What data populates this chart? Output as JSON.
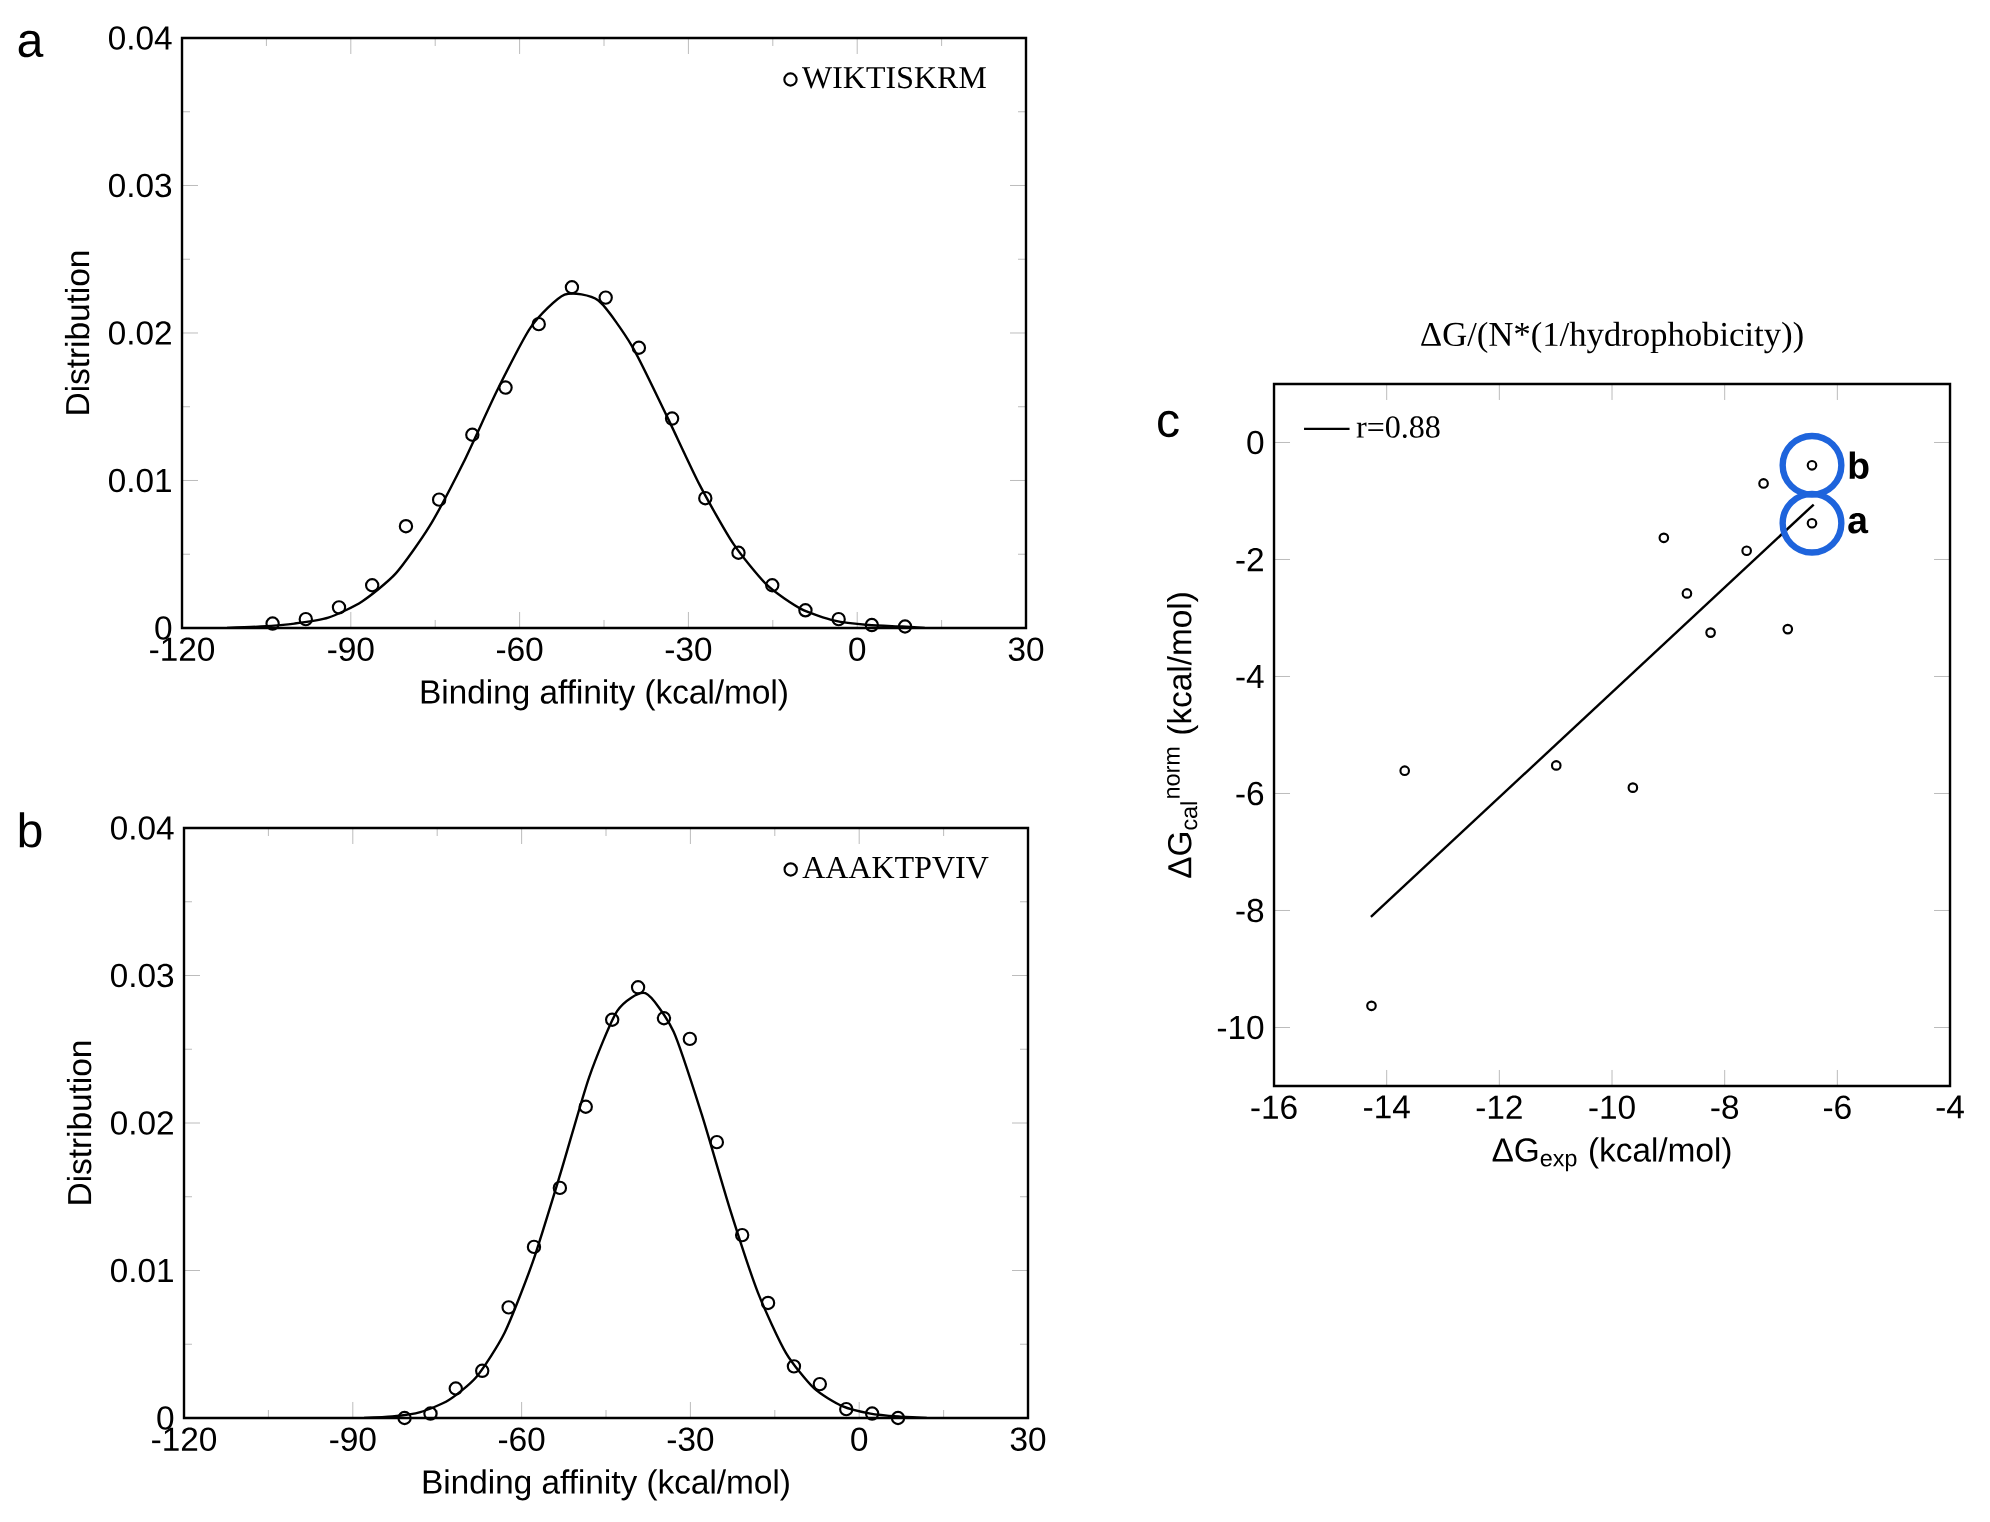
{
  "chart_data": [
    {
      "type": "scatter",
      "xlabel": "Binding affinity (kcal/mol)",
      "ylabel": "Distribution",
      "xlim": [
        -120,
        30
      ],
      "ylim": [
        0,
        0.04
      ],
      "xticks": [
        -120,
        -90,
        -60,
        -30,
        0,
        30
      ],
      "yticks": [
        0,
        0.01,
        0.02,
        0.03,
        0.04
      ],
      "legend": "top right",
      "annotations": [
        "a"
      ],
      "series": [
        {
          "name": "WIKTISKRM",
          "color": "#000000",
          "marker": "circle",
          "x": [
            -103.9,
            -98.0,
            -92.1,
            -86.2,
            -80.2,
            -74.3,
            -68.4,
            -62.5,
            -56.6,
            -50.7,
            -44.7,
            -38.8,
            -32.9,
            -27.0,
            -21.1,
            -15.1,
            -9.2,
            -3.3,
            2.6,
            8.5
          ],
          "values": [
            0.0003,
            0.0006,
            0.0014,
            0.0029,
            0.0069,
            0.0087,
            0.0131,
            0.0163,
            0.0206,
            0.0231,
            0.0224,
            0.019,
            0.0142,
            0.0088,
            0.0051,
            0.0029,
            0.0012,
            0.0006,
            0.0002,
            0.0001
          ]
        },
        {
          "type": "line",
          "color": "#000000",
          "marker": "none",
          "x": [
            -112,
            -106,
            -100,
            -94,
            -88,
            -82,
            -76,
            -70,
            -64,
            -58,
            -52,
            -46,
            -40,
            -34,
            -28,
            -22,
            -16,
            -10,
            -4,
            2,
            8,
            12
          ],
          "values": [
            0.0,
            0.0001,
            0.0003,
            0.0007,
            0.0018,
            0.0037,
            0.0069,
            0.0112,
            0.0161,
            0.0204,
            0.0226,
            0.0222,
            0.0191,
            0.0145,
            0.0097,
            0.0057,
            0.0029,
            0.0013,
            0.0005,
            0.0002,
            0.0001,
            0.0
          ]
        }
      ]
    },
    {
      "type": "scatter",
      "xlabel": "Binding affinity (kcal/mol)",
      "ylabel": "Distribution",
      "xlim": [
        -120,
        30
      ],
      "ylim": [
        0,
        0.04
      ],
      "xticks": [
        -120,
        -90,
        -60,
        -30,
        0,
        30
      ],
      "yticks": [
        0,
        0.01,
        0.02,
        0.03,
        0.04
      ],
      "legend": "top right",
      "annotations": [
        "b"
      ],
      "series": [
        {
          "name": "AAAKTPVIV",
          "color": "#000000",
          "marker": "circle",
          "x": [
            -80.8,
            -76.2,
            -71.7,
            -67.0,
            -62.3,
            -57.8,
            -53.2,
            -48.6,
            -43.9,
            -39.3,
            -34.7,
            -30.1,
            -25.3,
            -20.8,
            -16.2,
            -11.6,
            -7.0,
            -2.3,
            2.3,
            6.9
          ],
          "values": [
            0.0,
            0.0003,
            0.002,
            0.0032,
            0.0075,
            0.0116,
            0.0156,
            0.0211,
            0.027,
            0.0292,
            0.0271,
            0.0257,
            0.0187,
            0.0124,
            0.0078,
            0.0035,
            0.0023,
            0.0006,
            0.0003,
            0.0
          ]
        },
        {
          "type": "line",
          "color": "#000000",
          "marker": "none",
          "x": [
            -88,
            -83,
            -78,
            -73,
            -68,
            -63,
            -58,
            -53,
            -48,
            -43,
            -38,
            -33,
            -28,
            -23,
            -18,
            -13,
            -8,
            -3,
            2,
            7,
            12
          ],
          "values": [
            0.0,
            0.0001,
            0.0004,
            0.0012,
            0.0028,
            0.0058,
            0.0106,
            0.0167,
            0.0231,
            0.0276,
            0.0288,
            0.0262,
            0.0206,
            0.0142,
            0.0085,
            0.0044,
            0.002,
            0.0008,
            0.0003,
            0.0001,
            0.0
          ]
        }
      ]
    },
    {
      "type": "scatter",
      "title": "ΔG/(N*(1/hydrophobicity))",
      "xlabel": "ΔG$_{exp}$ (kcal/mol)",
      "ylabel": "ΔG$_{cal}$$^{norm}$ (kcal/mol)",
      "xlim": [
        -16,
        -4
      ],
      "ylim": [
        -11,
        1
      ],
      "xticks": [
        -16,
        -14,
        -12,
        -10,
        -8,
        -6,
        -4
      ],
      "yticks": [
        -10,
        -8,
        -6,
        -4,
        -2,
        0
      ],
      "legend": "top left",
      "annotations": [
        "c",
        {
          "text": "b",
          "x": -6.45,
          "y": -0.39
        },
        {
          "text": "a",
          "x": -6.45,
          "y": -1.38
        }
      ],
      "series": [
        {
          "color": "#000000",
          "marker": "circle",
          "x": [
            -14.27,
            -13.68,
            -10.99,
            -9.63,
            -9.08,
            -8.67,
            -8.25,
            -7.61,
            -7.31,
            -6.88,
            -6.45,
            -6.45
          ],
          "values": [
            -9.63,
            -5.61,
            -5.52,
            -5.9,
            -1.63,
            -2.58,
            -3.25,
            -1.85,
            -0.7,
            -3.19,
            -0.39,
            -1.38
          ]
        },
        {
          "type": "line",
          "name": "r=0.88",
          "color": "#000000",
          "marker": "none",
          "x": [
            -14.28,
            -6.42
          ],
          "values": [
            -8.11,
            -1.06
          ]
        }
      ]
    }
  ]
}
